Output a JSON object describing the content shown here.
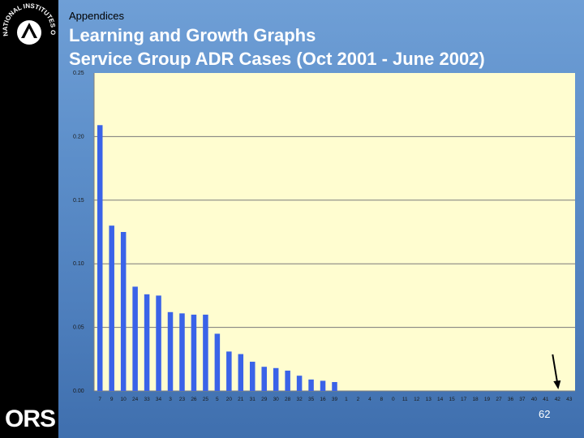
{
  "header": {
    "section": "Appendices",
    "title_line1": "Learning and Growth Graphs",
    "title_line2": "Service Group ADR Cases (Oct 2001 - June 2002)"
  },
  "branding": {
    "top_logo": "nih-seal-icon",
    "seal_text": "NATIONAL INSTITUTES OF HEALTH",
    "bottom_logo": "ORS"
  },
  "footer": {
    "page_number": "62"
  },
  "colors": {
    "bar": "#3a63e8",
    "plot_background": "#fffdd0",
    "gridline": "#7a7a7a",
    "sidebar": "#000000"
  },
  "chart_data": {
    "type": "bar",
    "categories": [
      "7",
      "9",
      "10",
      "24",
      "33",
      "34",
      "3",
      "23",
      "26",
      "25",
      "5",
      "20",
      "21",
      "31",
      "29",
      "30",
      "28",
      "32",
      "35",
      "16",
      "39",
      "1",
      "2",
      "4",
      "8",
      "0",
      "11",
      "12",
      "13",
      "14",
      "15",
      "17",
      "18",
      "19",
      "27",
      "36",
      "37",
      "40",
      "41",
      "42",
      "43"
    ],
    "values": [
      0.209,
      0.13,
      0.125,
      0.082,
      0.076,
      0.075,
      0.062,
      0.061,
      0.06,
      0.06,
      0.045,
      0.031,
      0.029,
      0.023,
      0.019,
      0.018,
      0.016,
      0.012,
      0.009,
      0.008,
      0.007,
      0,
      0,
      0,
      0,
      0,
      0,
      0,
      0,
      0,
      0,
      0,
      0,
      0,
      0,
      0,
      0,
      0,
      0,
      0,
      0
    ],
    "ylim": [
      0,
      0.25
    ],
    "yticks": [
      "0.00",
      "0.05",
      "0.10",
      "0.15",
      "0.20",
      "0.25"
    ],
    "grid": true,
    "annotations": [
      {
        "type": "arrow",
        "category": "42"
      }
    ]
  }
}
